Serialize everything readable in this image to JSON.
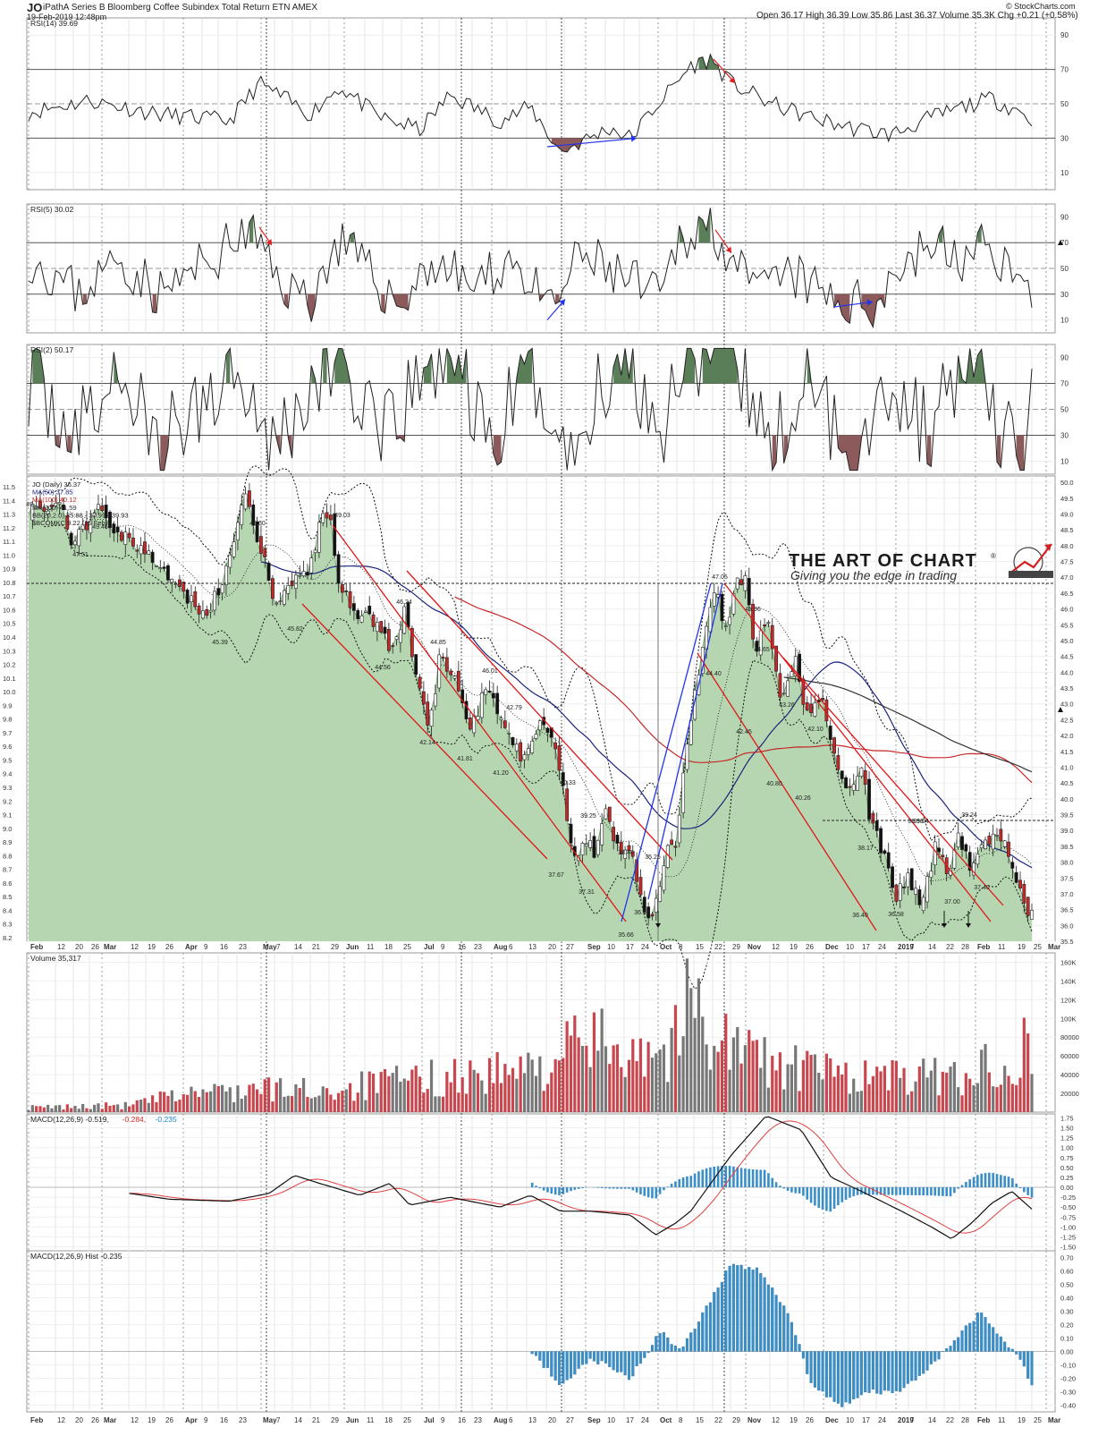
{
  "header": {
    "symbol": "JO",
    "name": "iPathA Series B Bloomberg Coffee Subindex Total Return ETN AMEX",
    "date": "19-Feb-2019 12:48pm",
    "source": "© StockCharts.com",
    "quote": "Open 36.17   High 36.39   Low 35.86   Last 36.37   Volume 35.3K   Chg +0.21 (+0.58%)"
  },
  "watermark": {
    "title": "THE ART OF CHART",
    "reg": "®",
    "tagline": "Giving you the edge in trading"
  },
  "panels": {
    "rsi14": {
      "label": "RSI(14) 39.69",
      "ticks": [
        "90",
        "70",
        "50",
        "30",
        "10"
      ],
      "tick_values": [
        90,
        70,
        50,
        30,
        10
      ]
    },
    "rsi5": {
      "label": "RSI(5) 30.02",
      "ticks": [
        "90",
        "70",
        "50",
        "30",
        "10"
      ],
      "tick_values": [
        90,
        70,
        50,
        30,
        10
      ]
    },
    "rsi2": {
      "label": "RSI(2) 50.17",
      "ticks": [
        "90",
        "70",
        "50",
        "30",
        "10"
      ],
      "tick_values": [
        90,
        70,
        50,
        30,
        10
      ]
    },
    "price": {
      "legend": [
        {
          "text": "JO (Daily) 36.37",
          "color": "#222222"
        },
        {
          "text": "MA(50) 37.85",
          "color": "#1a237e"
        },
        {
          "text": "MA(100) 40.12",
          "color": "#c62828"
        },
        {
          "text": "MA(200) 41.59",
          "color": "#333333"
        },
        {
          "text": "BB(20,2.0) 35.88 - 37.99 - 39.93",
          "color": "#222222"
        },
        {
          "text": "$BCOMKC 9.22 (15 Feb)",
          "color": "#222222"
        }
      ],
      "right_ticks": [
        "50.0",
        "49.5",
        "49.0",
        "48.5",
        "48.0",
        "47.5",
        "47.0",
        "46.5",
        "46.0",
        "45.5",
        "45.0",
        "44.5",
        "44.0",
        "43.5",
        "43.0",
        "42.5",
        "42.0",
        "41.5",
        "41.0",
        "40.5",
        "40.0",
        "39.5",
        "39.0",
        "38.5",
        "38.0",
        "37.5",
        "37.0",
        "36.5",
        "36.0",
        "35.5"
      ],
      "left_ticks": [
        "11.5",
        "11.4",
        "11.3",
        "11.2",
        "11.1",
        "11.0",
        "10.9",
        "10.8",
        "10.7",
        "10.6",
        "10.5",
        "10.4",
        "10.3",
        "10.2",
        "10.1",
        "10.0",
        "9.9",
        "9.8",
        "9.7",
        "9.6",
        "9.5",
        "9.4",
        "9.3",
        "9.2",
        "9.1",
        "9.0",
        "8.9",
        "8.8",
        "8.7",
        "8.6",
        "8.5",
        "8.4",
        "8.3",
        "8.2"
      ],
      "annotations": [
        "49",
        "47.51",
        "49.46",
        "49.60",
        "45.39",
        "45.82",
        "49.03",
        "46.24",
        "44.56",
        "44.85",
        "42.14",
        "46.01",
        "41.81",
        "42.79",
        "41.20",
        "40.33",
        "37.67",
        "39.25",
        "37.31",
        "35.66",
        "35.25",
        "38.40",
        "36.66",
        "47.05",
        "44.40",
        "45.96",
        "44.65",
        "42.45",
        "43.26",
        "40.80",
        "42.10",
        "40.26",
        "38.96",
        "38.17",
        "36.40",
        "36.58",
        "39.04",
        "37.00",
        "37.40",
        "39.24"
      ]
    },
    "volume": {
      "label": "Volume 35,317",
      "ticks": [
        "160K",
        "140K",
        "120K",
        "100K",
        "80000",
        "60000",
        "40000",
        "20000"
      ],
      "tick_values": [
        160000,
        140000,
        120000,
        100000,
        80000,
        60000,
        40000,
        20000
      ]
    },
    "macd": {
      "label": "MACD(12,26,9) -0.519, -0.284, -0.235",
      "label_parts": [
        {
          "text": "MACD(12,26,9) -0.519,",
          "color": "#222222"
        },
        {
          "text": "-0.284,",
          "color": "#d32f2f"
        },
        {
          "text": "-0.235",
          "color": "#1e88c8"
        }
      ],
      "ticks": [
        "1.75",
        "1.50",
        "1.25",
        "1.00",
        "0.75",
        "0.50",
        "0.25",
        "0.00",
        "-0.25",
        "-0.50",
        "-0.75",
        "-1.00",
        "-1.25",
        "-1.50"
      ],
      "tick_values": [
        1.75,
        1.5,
        1.25,
        1.0,
        0.75,
        0.5,
        0.25,
        0.0,
        -0.25,
        -0.5,
        -0.75,
        -1.0,
        -1.25,
        -1.5
      ]
    },
    "hist": {
      "label": "MACD(12,26,9) Hist -0.235",
      "ticks": [
        "0.70",
        "0.60",
        "0.50",
        "0.40",
        "0.30",
        "0.20",
        "0.10",
        "0.00",
        "-0.10",
        "-0.20",
        "-0.30",
        "-0.40"
      ],
      "tick_values": [
        0.7,
        0.6,
        0.5,
        0.4,
        0.3,
        0.2,
        0.1,
        0.0,
        -0.1,
        -0.2,
        -0.3,
        -0.4
      ]
    }
  },
  "x_axis": [
    {
      "t": "Feb",
      "m": true,
      "x": 32
    },
    {
      "t": "12",
      "x": 62
    },
    {
      "t": "20",
      "x": 82
    },
    {
      "t": "26",
      "x": 100
    },
    {
      "t": "Mar",
      "m": true,
      "x": 114
    },
    {
      "t": "12",
      "x": 144
    },
    {
      "t": "19",
      "x": 163
    },
    {
      "t": "26",
      "x": 183
    },
    {
      "t": "Apr",
      "m": true,
      "x": 205
    },
    {
      "t": "9",
      "x": 226
    },
    {
      "t": "16",
      "x": 244
    },
    {
      "t": "23",
      "x": 265
    },
    {
      "t": "May",
      "m": true,
      "x": 292
    },
    {
      "t": "7",
      "x": 307
    },
    {
      "t": "14",
      "x": 327
    },
    {
      "t": "21",
      "x": 347
    },
    {
      "t": "29",
      "x": 368
    },
    {
      "t": "Jun",
      "m": true,
      "x": 385
    },
    {
      "t": "11",
      "x": 408
    },
    {
      "t": "18",
      "x": 428
    },
    {
      "t": "25",
      "x": 449
    },
    {
      "t": "Jul",
      "m": true,
      "x": 472
    },
    {
      "t": "9",
      "x": 491
    },
    {
      "t": "16",
      "x": 510
    },
    {
      "t": "23",
      "x": 528
    },
    {
      "t": "Aug",
      "m": true,
      "x": 550
    },
    {
      "t": "6",
      "x": 567
    },
    {
      "t": "13",
      "x": 589
    },
    {
      "t": "20",
      "x": 611
    },
    {
      "t": "27",
      "x": 631
    },
    {
      "t": "Sep",
      "m": true,
      "x": 655
    },
    {
      "t": "10",
      "x": 677
    },
    {
      "t": "17",
      "x": 698
    },
    {
      "t": "24",
      "x": 715
    },
    {
      "t": "Oct",
      "m": true,
      "x": 736
    },
    {
      "t": "8",
      "x": 757
    },
    {
      "t": "15",
      "x": 776
    },
    {
      "t": "22",
      "x": 797
    },
    {
      "t": "29",
      "x": 817
    },
    {
      "t": "Nov",
      "m": true,
      "x": 834
    },
    {
      "t": "12",
      "x": 861
    },
    {
      "t": "19",
      "x": 881
    },
    {
      "t": "26",
      "x": 899
    },
    {
      "t": "Dec",
      "m": true,
      "x": 921
    },
    {
      "t": "10",
      "x": 944
    },
    {
      "t": "17",
      "x": 962
    },
    {
      "t": "24",
      "x": 980
    },
    {
      "t": "2019",
      "m": true,
      "x": 1002
    },
    {
      "t": "7",
      "x": 1016
    },
    {
      "t": "14",
      "x": 1036
    },
    {
      "t": "22",
      "x": 1056
    },
    {
      "t": "28",
      "x": 1073
    },
    {
      "t": "Feb",
      "m": true,
      "x": 1091
    },
    {
      "t": "11",
      "x": 1114
    },
    {
      "t": "19",
      "x": 1136
    },
    {
      "t": "25",
      "x": 1154
    },
    {
      "t": "Mar",
      "m": true,
      "x": 1170
    }
  ],
  "colors": {
    "area": "#b5d6b0",
    "area_line": "#7aa874",
    "up": "#2e7d32",
    "down": "#c62828",
    "ob": "#5a7f58",
    "os": "#8c5a5a",
    "hist": "#3b8fc8",
    "vol_up": "#777777",
    "vol_down": "#c8464e",
    "ma50": "#1a237e",
    "ma100": "#c62828",
    "ma200": "#333333",
    "signal": "#e04040",
    "blue_trend": "#2233ee"
  },
  "chart_data": [
    {
      "type": "line",
      "title": "RSI(14) 39.69",
      "ylim": [
        0,
        100
      ]
    },
    {
      "type": "line",
      "title": "RSI(5) 30.02",
      "ylim": [
        0,
        100
      ]
    },
    {
      "type": "line",
      "title": "RSI(2) 50.17",
      "ylim": [
        0,
        100
      ]
    },
    {
      "type": "line",
      "title": "JO (Daily) 36.37",
      "ylim": [
        35.5,
        50.0
      ],
      "series": [
        {
          "name": "MA(50) 37.85"
        },
        {
          "name": "MA(100) 40.12"
        },
        {
          "name": "MA(200) 41.59"
        },
        {
          "name": "BB(20,2.0) 35.88 - 37.99 - 39.93"
        },
        {
          "name": "$BCOMKC 9.22 (15 Feb)"
        }
      ]
    },
    {
      "type": "bar",
      "title": "Volume 35,317",
      "ylim": [
        0,
        170000
      ]
    },
    {
      "type": "line",
      "title": "MACD(12,26,9) -0.519, -0.284, -0.235",
      "ylim": [
        -1.6,
        1.85
      ]
    },
    {
      "type": "bar",
      "title": "MACD(12,26,9) Hist -0.235",
      "ylim": [
        -0.45,
        0.75
      ]
    }
  ]
}
